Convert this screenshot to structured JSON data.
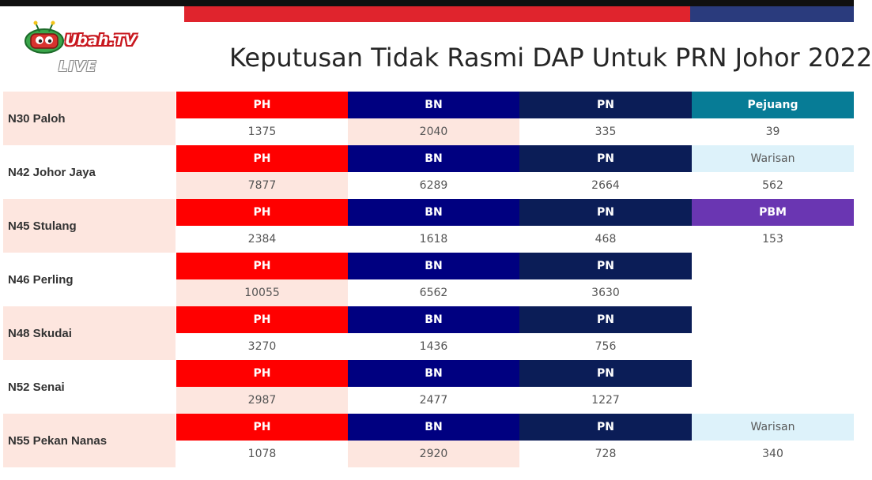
{
  "brand": {
    "name": "Ubah.TV",
    "live": "LIVE"
  },
  "title": "Keputusan Tidak Rasmi DAP Untuk PRN Johor 2022",
  "colors": {
    "PH": "#ff0000",
    "BN": "#000080",
    "PN": "#0b1d57",
    "Pejuang": "#077c96",
    "Warisan": "#ddf2fa",
    "PBM": "#6a36b2",
    "row_shade": "#fde6df"
  },
  "rows": [
    {
      "seat": "N30 Paloh",
      "parties": [
        "PH",
        "BN",
        "PN",
        "Pejuang"
      ],
      "votes": [
        "1375",
        "2040",
        "335",
        "39"
      ]
    },
    {
      "seat": "N42 Johor Jaya",
      "parties": [
        "PH",
        "BN",
        "PN",
        "Warisan"
      ],
      "votes": [
        "7877",
        "6289",
        "2664",
        "562"
      ]
    },
    {
      "seat": "N45 Stulang",
      "parties": [
        "PH",
        "BN",
        "PN",
        "PBM"
      ],
      "votes": [
        "2384",
        "1618",
        "468",
        "153"
      ]
    },
    {
      "seat": "N46 Perling",
      "parties": [
        "PH",
        "BN",
        "PN",
        ""
      ],
      "votes": [
        "10055",
        "6562",
        "3630",
        ""
      ]
    },
    {
      "seat": "N48 Skudai",
      "parties": [
        "PH",
        "BN",
        "PN",
        ""
      ],
      "votes": [
        "3270",
        "1436",
        "756",
        ""
      ]
    },
    {
      "seat": "N52 Senai",
      "parties": [
        "PH",
        "BN",
        "PN",
        ""
      ],
      "votes": [
        "2987",
        "2477",
        "1227",
        ""
      ]
    },
    {
      "seat": "N55 Pekan Nanas",
      "parties": [
        "PH",
        "BN",
        "PN",
        "Warisan"
      ],
      "votes": [
        "1078",
        "2920",
        "728",
        "340"
      ]
    }
  ]
}
